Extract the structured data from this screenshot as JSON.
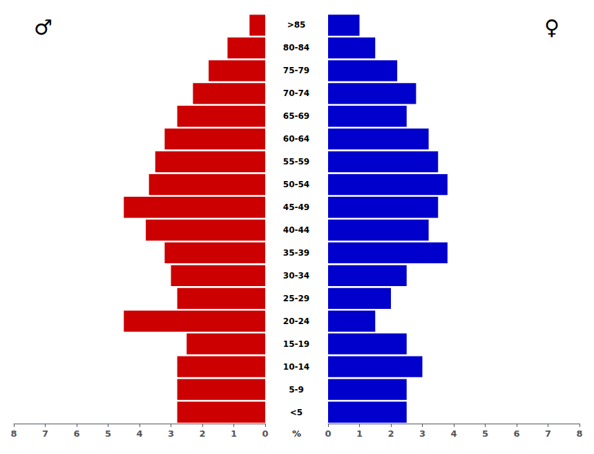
{
  "chart_data": {
    "type": "bar",
    "orientation": "horizontal",
    "categories": [
      "<5",
      "5-9",
      "10-14",
      "15-19",
      "20-24",
      "25-29",
      "30-34",
      "35-39",
      "40-44",
      "45-49",
      "50-54",
      "55-59",
      "60-64",
      "65-69",
      "70-74",
      "75-79",
      "80-84",
      ">85"
    ],
    "series": [
      {
        "name": "♂",
        "color": "#cc0000",
        "values": [
          2.8,
          2.8,
          2.8,
          2.5,
          4.5,
          2.8,
          3.0,
          3.2,
          3.8,
          4.5,
          3.7,
          3.5,
          3.2,
          2.8,
          2.3,
          1.8,
          1.2,
          0.5
        ]
      },
      {
        "name": "♀",
        "color": "#0000cc",
        "values": [
          2.5,
          2.5,
          3.0,
          2.5,
          1.5,
          2.0,
          2.5,
          3.8,
          3.2,
          3.5,
          3.8,
          3.5,
          3.2,
          2.5,
          2.8,
          2.2,
          1.5,
          1.0
        ]
      }
    ],
    "xlabel": "%",
    "xlim": [
      0,
      8
    ],
    "xticks": [
      0,
      1,
      2,
      3,
      4,
      5,
      6,
      7,
      8
    ],
    "grid": false
  }
}
